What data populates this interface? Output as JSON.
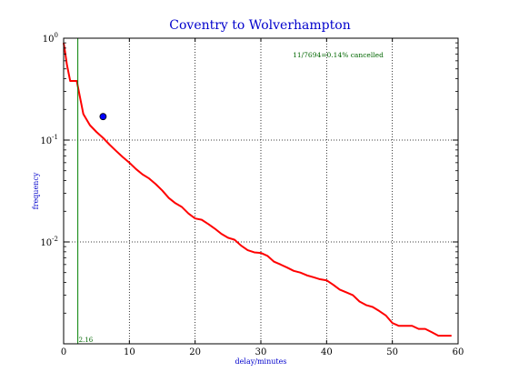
{
  "chart_data": {
    "type": "line",
    "title": "Coventry to Wolverhampton",
    "xlabel": "delay/minutes",
    "ylabel": "frequency",
    "xlim": [
      0,
      60
    ],
    "ylim": [
      0.001,
      1
    ],
    "yscale": "log",
    "grid": true,
    "x_ticks": [
      "0",
      "10",
      "20",
      "30",
      "40",
      "50",
      "60"
    ],
    "y_ticks": [
      {
        "value": 1,
        "base": "10",
        "exp": "0"
      },
      {
        "value": 0.1,
        "base": "10",
        "exp": "-1"
      },
      {
        "value": 0.01,
        "base": "10",
        "exp": "-2"
      }
    ],
    "annotation": "11/7694=0.14% cancelled",
    "vline": {
      "x": 2.16,
      "label": "2.16",
      "color": "#008000"
    },
    "marker": {
      "x": 6,
      "y": 0.17,
      "color": "#0000ff"
    },
    "series": [
      {
        "color": "#ff0000",
        "x": [
          0,
          0.2,
          0.5,
          1,
          2,
          3,
          4,
          5,
          6,
          7,
          8,
          9,
          10,
          11,
          12,
          13,
          14,
          15,
          16,
          17,
          18,
          19,
          20,
          21,
          22,
          23,
          24,
          25,
          26,
          27,
          28,
          29,
          30,
          31,
          32,
          33,
          34,
          35,
          36,
          37,
          38,
          39,
          40,
          41,
          42,
          43,
          44,
          45,
          46,
          47,
          48,
          49,
          50,
          51,
          52,
          53,
          54,
          55,
          56,
          57,
          58,
          59
        ],
        "y": [
          0.9,
          0.75,
          0.55,
          0.38,
          0.38,
          0.18,
          0.14,
          0.12,
          0.105,
          0.09,
          0.078,
          0.068,
          0.06,
          0.052,
          0.046,
          0.042,
          0.037,
          0.032,
          0.027,
          0.024,
          0.022,
          0.019,
          0.017,
          0.0165,
          0.015,
          0.0135,
          0.012,
          0.011,
          0.0105,
          0.0092,
          0.0083,
          0.0079,
          0.0078,
          0.0073,
          0.0064,
          0.006,
          0.0056,
          0.0052,
          0.005,
          0.0047,
          0.0045,
          0.0043,
          0.0042,
          0.0038,
          0.0034,
          0.0032,
          0.003,
          0.0026,
          0.0024,
          0.0023,
          0.0021,
          0.0019,
          0.0016,
          0.0015,
          0.0015,
          0.0015,
          0.0014,
          0.0014,
          0.0013,
          0.0012,
          0.0012,
          0.0012
        ]
      }
    ]
  }
}
